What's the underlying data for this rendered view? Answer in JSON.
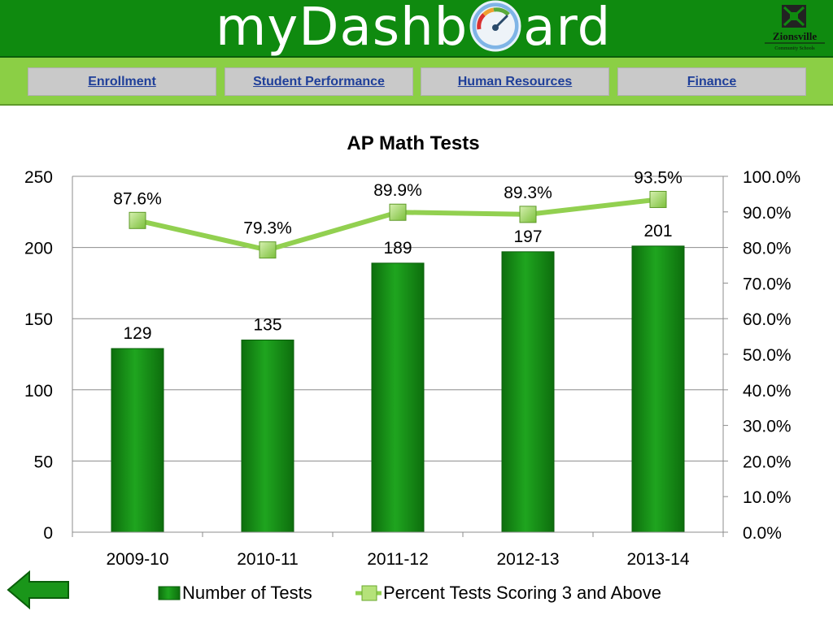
{
  "header": {
    "logo_part1": "myDashb",
    "logo_part2": "ard",
    "logo_icon": "dashboard-gauge-icon",
    "district_name": "Zionsville",
    "district_sub": "Community Schools",
    "district_logo_icon": "zionsville-seal-icon"
  },
  "nav": {
    "tabs": [
      {
        "label": "Enrollment"
      },
      {
        "label": "Student Performance"
      },
      {
        "label": "Human Resources"
      },
      {
        "label": "Finance"
      }
    ]
  },
  "colors": {
    "header_green": "#0f8a0f",
    "nav_green": "#8bcf45",
    "bar_green": "#1a961a",
    "line_green": "#92d050",
    "tab_text": "#1f3f99"
  },
  "chart_data": {
    "type": "bar",
    "title": "AP Math Tests",
    "categories": [
      "2009-10",
      "2010-11",
      "2011-12",
      "2012-13",
      "2013-14"
    ],
    "series": [
      {
        "name": "Number of Tests",
        "type": "bar",
        "axis": "left",
        "values": [
          129,
          135,
          189,
          197,
          201
        ],
        "labels": [
          "129",
          "135",
          "189",
          "197",
          "201"
        ]
      },
      {
        "name": "Percent Tests Scoring 3 and Above",
        "type": "line",
        "axis": "right",
        "values": [
          87.6,
          79.3,
          89.9,
          89.3,
          93.5
        ],
        "labels": [
          "87.6%",
          "79.3%",
          "89.9%",
          "89.3%",
          "93.5%"
        ]
      }
    ],
    "y_left": {
      "min": 0,
      "max": 250,
      "ticks": [
        "0",
        "50",
        "100",
        "150",
        "200",
        "250"
      ]
    },
    "y_right": {
      "min": 0,
      "max": 100,
      "ticks": [
        "0.0%",
        "10.0%",
        "20.0%",
        "30.0%",
        "40.0%",
        "50.0%",
        "60.0%",
        "70.0%",
        "80.0%",
        "90.0%",
        "100.0%"
      ]
    },
    "grid": "horizontal",
    "legend_position": "bottom"
  },
  "footer": {
    "back_icon": "back-arrow-icon"
  }
}
